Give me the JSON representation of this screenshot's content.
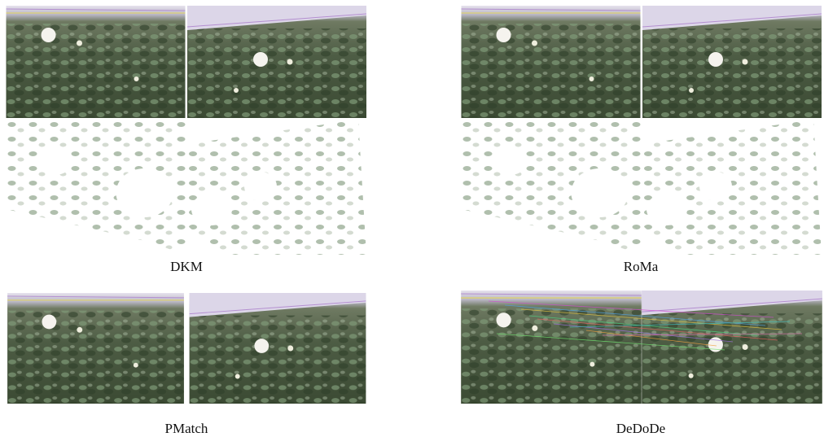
{
  "panels": [
    {
      "caption": "DKM"
    },
    {
      "caption": "RoMa"
    },
    {
      "caption": "PMatch"
    },
    {
      "caption": "DeDoDe"
    }
  ]
}
